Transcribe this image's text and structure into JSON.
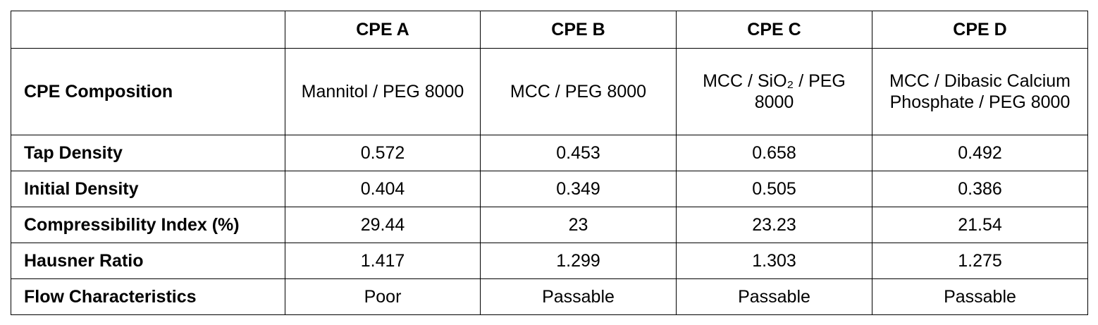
{
  "table": {
    "header": [
      "CPE A",
      "CPE B",
      "CPE C",
      "CPE D"
    ],
    "rows": [
      [
        "CPE Composition",
        "Mannitol / PEG 8000",
        "MCC / PEG 8000",
        "MCC / SiO₂ / PEG 8000",
        "MCC / Dibasic Calcium Phosphate / PEG 8000"
      ],
      [
        "Tap Density",
        "0.572",
        "0.453",
        "0.658",
        "0.492"
      ],
      [
        "Initial Density",
        "0.404",
        "0.349",
        "0.505",
        "0.386"
      ],
      [
        "Compressibility Index (%)",
        "29.44",
        "23",
        "23.23",
        "21.54"
      ],
      [
        "Hausner Ratio",
        "1.417",
        "1.299",
        "1.303",
        "1.275"
      ],
      [
        "Flow Characteristics",
        "Poor",
        "Passable",
        "Passable",
        "Passable"
      ]
    ]
  }
}
